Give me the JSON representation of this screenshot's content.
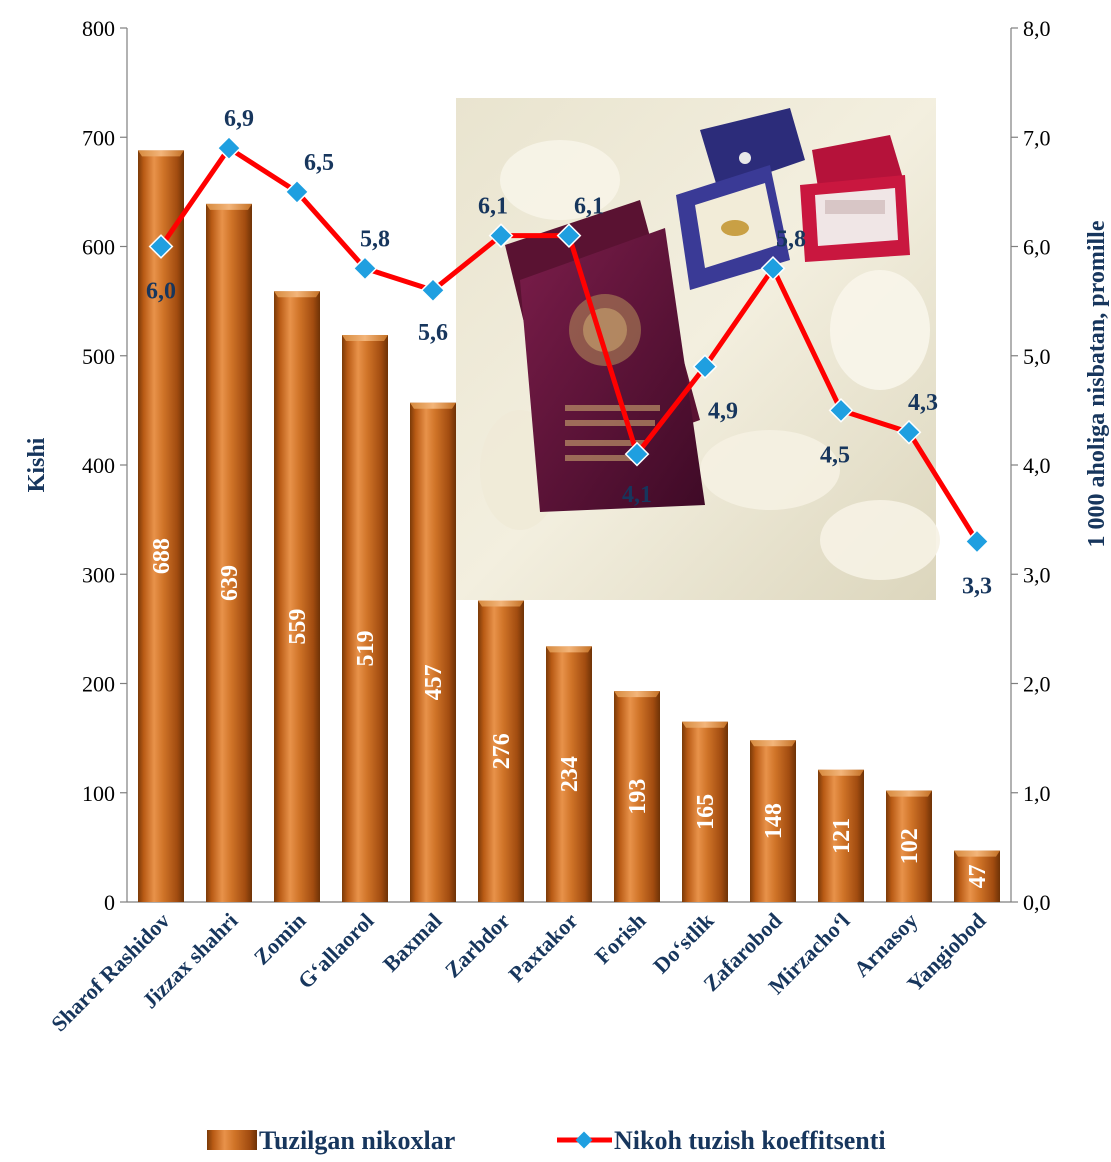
{
  "chart_data": {
    "type": "bar",
    "categories": [
      "Sharof Rashidov",
      "Jizzax shahri",
      "Zomin",
      "G‘allaorol",
      "Baxmal",
      "Zarbdor",
      "Paxtakor",
      "Forish",
      "Do‘stlik",
      "Zafarobod",
      "Mirzacho‘l",
      "Arnasoy",
      "Yangiobod"
    ],
    "series": [
      {
        "name": "Tuzilgan nikoxlar",
        "type": "bar",
        "axis": "left",
        "values": [
          688,
          639,
          559,
          519,
          457,
          276,
          234,
          193,
          165,
          148,
          121,
          102,
          47
        ],
        "labels": [
          "688",
          "639",
          "559",
          "519",
          "457",
          "276",
          "234",
          "193",
          "165",
          "148",
          "121",
          "102",
          "47"
        ],
        "color": "#c8651b"
      },
      {
        "name": "Nikoh tuzish koeffitsenti",
        "type": "line",
        "axis": "right",
        "values": [
          6.0,
          6.9,
          6.5,
          5.8,
          5.6,
          6.1,
          6.1,
          4.1,
          4.9,
          5.8,
          4.5,
          4.3,
          3.3
        ],
        "labels": [
          "6,0",
          "6,9",
          "6,5",
          "5,8",
          "5,6",
          "6,1",
          "6,1",
          "4,1",
          "4,9",
          "5,8",
          "4,5",
          "4,3",
          "3,3"
        ],
        "color": "#ff0000",
        "marker_color": "#1f9fe0"
      }
    ],
    "ylabel": "Kishi",
    "y2label": "1 000 aholiga nisbatan, promille",
    "ylim": [
      0,
      800
    ],
    "y2lim": [
      0,
      8
    ],
    "yticks": [
      "0",
      "100",
      "200",
      "300",
      "400",
      "500",
      "600",
      "700",
      "800"
    ],
    "y2ticks": [
      "0,0",
      "1,0",
      "2,0",
      "3,0",
      "4,0",
      "5,0",
      "6,0",
      "7,0",
      "8,0"
    ],
    "grid": false,
    "legend": "bottom"
  }
}
